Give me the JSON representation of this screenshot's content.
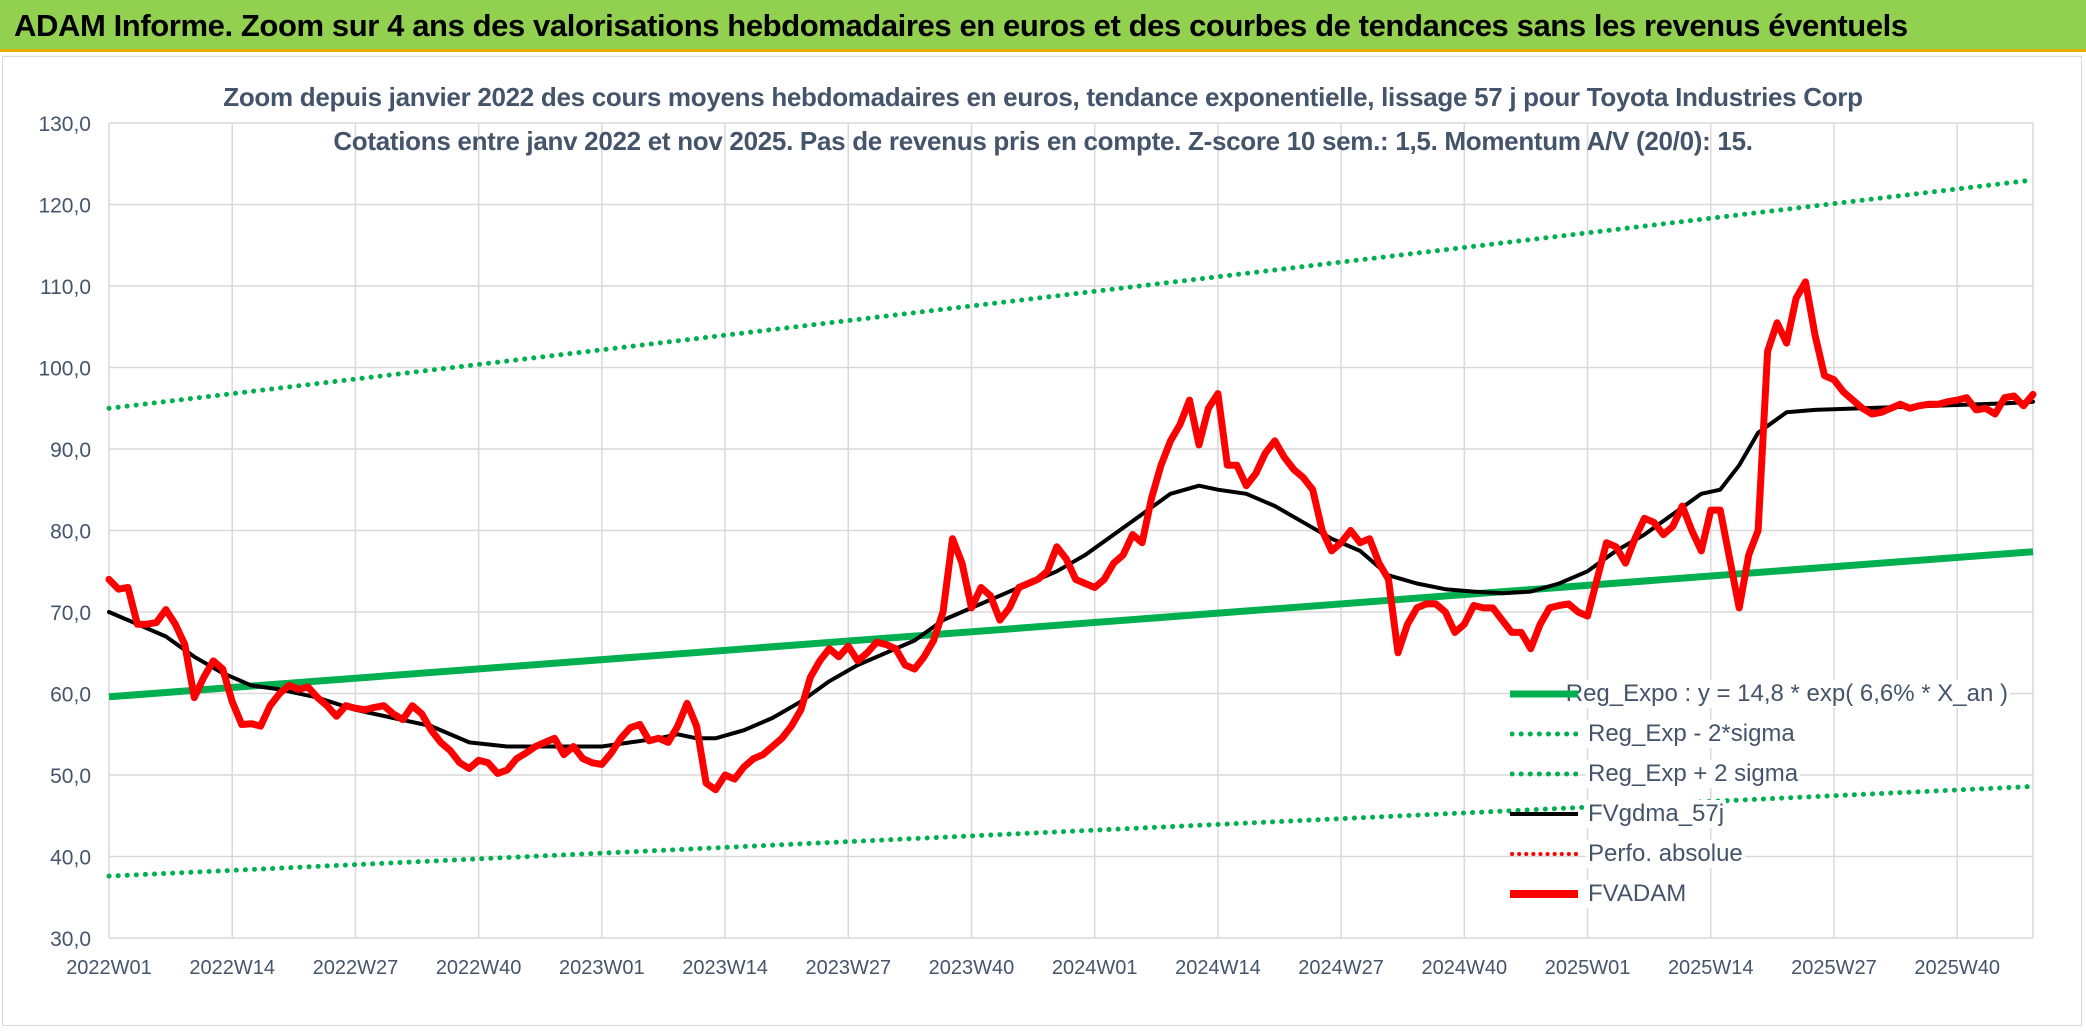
{
  "header": {
    "title": "ADAM Informe. Zoom sur 4 ans des valorisations hebdomadaires en euros et des courbes de tendances sans les revenus éventuels"
  },
  "colors": {
    "header_bg": "#92d050",
    "reg_expo": "#00b050",
    "band": "#00b050",
    "fvgdma": "#000000",
    "perfo": "#ff0000",
    "fvadam": "#ff0000",
    "grid": "#d9d9d9",
    "axis_text": "#44546a"
  },
  "chart_data": {
    "type": "line",
    "title": "Zoom depuis janvier 2022 des cours moyens hebdomadaires en euros, tendance exponentielle, lissage 57 j pour Toyota Industries Corp",
    "subtitle": "Cotations entre janv 2022 et nov 2025. Pas de revenus pris en compte. Z-score 10 sem.: 1,5. Momentum A/V (20/0): 15.",
    "xlabel": "",
    "ylabel": "",
    "ylim": [
      30,
      130
    ],
    "yticks": [
      "30,0",
      "40,0",
      "50,0",
      "60,0",
      "70,0",
      "80,0",
      "90,0",
      "100,0",
      "110,0",
      "120,0",
      "130,0"
    ],
    "x_range_weeks": [
      0,
      203
    ],
    "xtick_labels": [
      "2022W01",
      "2022W14",
      "2022W27",
      "2022W40",
      "2023W01",
      "2023W14",
      "2023W27",
      "2023W40",
      "2024W01",
      "2024W14",
      "2024W27",
      "2024W40",
      "2025W01",
      "2025W14",
      "2025W27",
      "2025W40"
    ],
    "xtick_weeks": [
      0,
      13,
      26,
      39,
      52,
      65,
      78,
      91,
      104,
      117,
      130,
      143,
      156,
      169,
      182,
      195
    ],
    "grid": true,
    "legend_position": "bottom-right",
    "series": [
      {
        "name": "Reg_Expo : y = 14,8 * exp( 6,6% *  X_an )",
        "style": "solid-thick",
        "color": "#00b050",
        "points": [
          [
            0,
            59.6
          ],
          [
            203,
            77.4
          ]
        ]
      },
      {
        "name": "Reg_Exp - 2*sigma",
        "style": "dotted",
        "color": "#00b050",
        "points": [
          [
            0,
            37.6
          ],
          [
            203,
            48.6
          ]
        ]
      },
      {
        "name": "Reg_Exp + 2 sigma",
        "style": "dotted",
        "color": "#00b050",
        "points": [
          [
            0,
            95.0
          ],
          [
            203,
            123.0
          ]
        ]
      },
      {
        "name": "FVgdma_57j",
        "style": "solid",
        "color": "#000000",
        "points": [
          [
            0,
            70.0
          ],
          [
            3,
            68.5
          ],
          [
            6,
            67.0
          ],
          [
            9,
            64.5
          ],
          [
            12,
            62.5
          ],
          [
            15,
            61.0
          ],
          [
            18,
            60.5
          ],
          [
            22,
            59.5
          ],
          [
            26,
            58.0
          ],
          [
            30,
            57.0
          ],
          [
            34,
            56.0
          ],
          [
            38,
            54.0
          ],
          [
            42,
            53.5
          ],
          [
            46,
            53.5
          ],
          [
            52,
            53.5
          ],
          [
            55,
            54.0
          ],
          [
            58,
            54.5
          ],
          [
            60,
            55.0
          ],
          [
            62,
            54.5
          ],
          [
            64,
            54.5
          ],
          [
            67,
            55.5
          ],
          [
            70,
            57.0
          ],
          [
            73,
            59.0
          ],
          [
            76,
            61.5
          ],
          [
            79,
            63.5
          ],
          [
            82,
            65.0
          ],
          [
            85,
            66.5
          ],
          [
            88,
            69.0
          ],
          [
            91,
            70.5
          ],
          [
            94,
            72.0
          ],
          [
            97,
            73.5
          ],
          [
            100,
            75.0
          ],
          [
            103,
            77.0
          ],
          [
            106,
            79.5
          ],
          [
            109,
            82.0
          ],
          [
            112,
            84.5
          ],
          [
            115,
            85.5
          ],
          [
            117,
            85.0
          ],
          [
            120,
            84.5
          ],
          [
            123,
            83.0
          ],
          [
            126,
            81.0
          ],
          [
            129,
            79.0
          ],
          [
            132,
            77.5
          ],
          [
            135,
            74.5
          ],
          [
            138,
            73.5
          ],
          [
            141,
            72.8
          ],
          [
            144,
            72.5
          ],
          [
            147,
            72.3
          ],
          [
            150,
            72.5
          ],
          [
            153,
            73.5
          ],
          [
            156,
            75.0
          ],
          [
            159,
            77.5
          ],
          [
            162,
            79.5
          ],
          [
            165,
            82.0
          ],
          [
            168,
            84.5
          ],
          [
            170,
            85.0
          ],
          [
            172,
            88.0
          ],
          [
            174,
            92.0
          ],
          [
            177,
            94.5
          ],
          [
            180,
            94.8
          ],
          [
            185,
            95.0
          ],
          [
            190,
            95.2
          ],
          [
            195,
            95.4
          ],
          [
            200,
            95.6
          ],
          [
            203,
            95.8
          ]
        ]
      },
      {
        "name": "Perfo. absolue",
        "style": "dotted",
        "color": "#ff0000",
        "points": []
      },
      {
        "name": "FVADAM",
        "style": "solid-thick",
        "color": "#ff0000",
        "points": [
          [
            0,
            74.0
          ],
          [
            1,
            72.8
          ],
          [
            2,
            73.0
          ],
          [
            3,
            68.5
          ],
          [
            4,
            68.5
          ],
          [
            5,
            68.7
          ],
          [
            6,
            70.3
          ],
          [
            7,
            68.5
          ],
          [
            8,
            66.0
          ],
          [
            9,
            59.5
          ],
          [
            10,
            62.0
          ],
          [
            11,
            64.0
          ],
          [
            12,
            63.0
          ],
          [
            13,
            59.0
          ],
          [
            14,
            56.2
          ],
          [
            15,
            56.3
          ],
          [
            16,
            56.0
          ],
          [
            17,
            58.5
          ],
          [
            18,
            60.0
          ],
          [
            19,
            61.0
          ],
          [
            20,
            60.5
          ],
          [
            21,
            60.8
          ],
          [
            22,
            59.5
          ],
          [
            23,
            58.5
          ],
          [
            24,
            57.2
          ],
          [
            25,
            58.5
          ],
          [
            26,
            58.2
          ],
          [
            27,
            58.0
          ],
          [
            28,
            58.3
          ],
          [
            29,
            58.5
          ],
          [
            30,
            57.5
          ],
          [
            31,
            56.8
          ],
          [
            32,
            58.5
          ],
          [
            33,
            57.5
          ],
          [
            34,
            55.5
          ],
          [
            35,
            54.0
          ],
          [
            36,
            53.0
          ],
          [
            37,
            51.5
          ],
          [
            38,
            50.8
          ],
          [
            39,
            51.8
          ],
          [
            40,
            51.5
          ],
          [
            41,
            50.2
          ],
          [
            42,
            50.6
          ],
          [
            43,
            52.0
          ],
          [
            44,
            52.7
          ],
          [
            45,
            53.5
          ],
          [
            46,
            54.0
          ],
          [
            47,
            54.5
          ],
          [
            48,
            52.5
          ],
          [
            49,
            53.5
          ],
          [
            50,
            52.0
          ],
          [
            51,
            51.5
          ],
          [
            52,
            51.3
          ],
          [
            53,
            52.7
          ],
          [
            54,
            54.5
          ],
          [
            55,
            55.8
          ],
          [
            56,
            56.2
          ],
          [
            57,
            54.2
          ],
          [
            58,
            54.5
          ],
          [
            59,
            54.0
          ],
          [
            60,
            56.0
          ],
          [
            61,
            58.8
          ],
          [
            62,
            56.0
          ],
          [
            63,
            49.0
          ],
          [
            64,
            48.2
          ],
          [
            65,
            50.0
          ],
          [
            66,
            49.5
          ],
          [
            67,
            51.0
          ],
          [
            68,
            52.0
          ],
          [
            69,
            52.5
          ],
          [
            70,
            53.5
          ],
          [
            71,
            54.5
          ],
          [
            72,
            56.0
          ],
          [
            73,
            58.0
          ],
          [
            74,
            62.0
          ],
          [
            75,
            64.0
          ],
          [
            76,
            65.5
          ],
          [
            77,
            64.5
          ],
          [
            78,
            65.8
          ],
          [
            79,
            64.0
          ],
          [
            80,
            65.0
          ],
          [
            81,
            66.3
          ],
          [
            82,
            66.0
          ],
          [
            83,
            65.5
          ],
          [
            84,
            63.5
          ],
          [
            85,
            63.0
          ],
          [
            86,
            64.5
          ],
          [
            87,
            66.5
          ],
          [
            88,
            70.0
          ],
          [
            89,
            79.0
          ],
          [
            90,
            76.0
          ],
          [
            91,
            70.5
          ],
          [
            92,
            73.0
          ],
          [
            93,
            72.0
          ],
          [
            94,
            69.0
          ],
          [
            95,
            70.5
          ],
          [
            96,
            73.0
          ],
          [
            97,
            73.5
          ],
          [
            98,
            74.0
          ],
          [
            99,
            75.0
          ],
          [
            100,
            78.0
          ],
          [
            101,
            76.5
          ],
          [
            102,
            74.0
          ],
          [
            103,
            73.5
          ],
          [
            104,
            73.0
          ],
          [
            105,
            74.0
          ],
          [
            106,
            76.0
          ],
          [
            107,
            77.0
          ],
          [
            108,
            79.5
          ],
          [
            109,
            78.5
          ],
          [
            110,
            84.0
          ],
          [
            111,
            88.0
          ],
          [
            112,
            91.0
          ],
          [
            113,
            93.0
          ],
          [
            114,
            96.0
          ],
          [
            115,
            90.5
          ],
          [
            116,
            95.0
          ],
          [
            117,
            96.8
          ],
          [
            118,
            88.0
          ],
          [
            119,
            88.0
          ],
          [
            120,
            85.5
          ],
          [
            121,
            87.0
          ],
          [
            122,
            89.5
          ],
          [
            123,
            91.0
          ],
          [
            124,
            89.0
          ],
          [
            125,
            87.5
          ],
          [
            126,
            86.5
          ],
          [
            127,
            85.0
          ],
          [
            128,
            80.0
          ],
          [
            129,
            77.5
          ],
          [
            130,
            78.5
          ],
          [
            131,
            80.0
          ],
          [
            132,
            78.5
          ],
          [
            133,
            79.0
          ],
          [
            134,
            76.0
          ],
          [
            135,
            74.0
          ],
          [
            136,
            65.0
          ],
          [
            137,
            68.5
          ],
          [
            138,
            70.5
          ],
          [
            139,
            71.0
          ],
          [
            140,
            71.0
          ],
          [
            141,
            70.0
          ],
          [
            142,
            67.5
          ],
          [
            143,
            68.5
          ],
          [
            144,
            70.8
          ],
          [
            145,
            70.5
          ],
          [
            146,
            70.5
          ],
          [
            147,
            69.0
          ],
          [
            148,
            67.5
          ],
          [
            149,
            67.5
          ],
          [
            150,
            65.5
          ],
          [
            151,
            68.5
          ],
          [
            152,
            70.5
          ],
          [
            153,
            70.8
          ],
          [
            154,
            71.0
          ],
          [
            155,
            70.0
          ],
          [
            156,
            69.5
          ],
          [
            157,
            74.0
          ],
          [
            158,
            78.5
          ],
          [
            159,
            78.0
          ],
          [
            160,
            76.0
          ],
          [
            161,
            79.0
          ],
          [
            162,
            81.5
          ],
          [
            163,
            81.0
          ],
          [
            164,
            79.5
          ],
          [
            165,
            80.5
          ],
          [
            166,
            83.0
          ],
          [
            167,
            80.0
          ],
          [
            168,
            77.5
          ],
          [
            169,
            82.5
          ],
          [
            170,
            82.5
          ],
          [
            171,
            76.5
          ],
          [
            172,
            70.5
          ],
          [
            173,
            77.0
          ],
          [
            174,
            80.0
          ],
          [
            175,
            102.0
          ],
          [
            176,
            105.5
          ],
          [
            177,
            103.0
          ],
          [
            178,
            108.5
          ],
          [
            179,
            110.5
          ],
          [
            180,
            104.0
          ],
          [
            181,
            99.0
          ],
          [
            182,
            98.5
          ],
          [
            183,
            97.0
          ],
          [
            184,
            96.0
          ],
          [
            185,
            95.0
          ],
          [
            186,
            94.3
          ],
          [
            187,
            94.5
          ],
          [
            188,
            95.0
          ],
          [
            189,
            95.5
          ],
          [
            190,
            95.0
          ],
          [
            191,
            95.3
          ],
          [
            192,
            95.5
          ],
          [
            193,
            95.5
          ],
          [
            194,
            95.8
          ],
          [
            195,
            96.0
          ],
          [
            196,
            96.3
          ],
          [
            197,
            94.8
          ],
          [
            198,
            95.0
          ],
          [
            199,
            94.3
          ],
          [
            200,
            96.3
          ],
          [
            201,
            96.5
          ],
          [
            202,
            95.3
          ],
          [
            203,
            96.7
          ]
        ]
      }
    ]
  }
}
